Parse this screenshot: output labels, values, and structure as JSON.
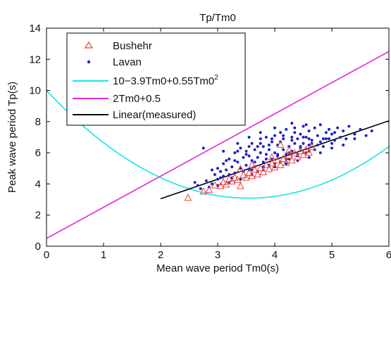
{
  "chart_data": {
    "type": "scatter",
    "title": "Tp/Tm0",
    "xlabel": "Mean wave period Tm0(s)",
    "ylabel": "Peak wave period Tp(s)",
    "xlim": [
      0,
      6
    ],
    "ylim": [
      0,
      14
    ],
    "xticks": [
      "0",
      "1",
      "2",
      "3",
      "4",
      "5",
      "6"
    ],
    "yticks": [
      "0",
      "2",
      "4",
      "6",
      "8",
      "10",
      "12",
      "14"
    ],
    "grid": false,
    "legend_position": "top-left",
    "series": [
      {
        "name": "Bushehr",
        "kind": "scatter",
        "marker": "triangle-open",
        "color": "#e8413a",
        "points": [
          [
            2.48,
            3.1
          ],
          [
            2.75,
            3.5
          ],
          [
            2.85,
            3.6
          ],
          [
            2.95,
            3.9
          ],
          [
            3.05,
            3.85
          ],
          [
            3.1,
            4.1
          ],
          [
            3.15,
            3.95
          ],
          [
            3.2,
            4.3
          ],
          [
            3.25,
            4.15
          ],
          [
            3.3,
            4.4
          ],
          [
            3.35,
            4.25
          ],
          [
            3.4,
            3.85
          ],
          [
            3.45,
            4.55
          ],
          [
            3.5,
            4.4
          ],
          [
            3.55,
            4.7
          ],
          [
            3.6,
            4.5
          ],
          [
            3.65,
            4.9
          ],
          [
            3.7,
            4.6
          ],
          [
            3.75,
            5.0
          ],
          [
            3.8,
            4.75
          ],
          [
            3.85,
            5.2
          ],
          [
            3.9,
            4.95
          ],
          [
            3.95,
            5.3
          ],
          [
            4.0,
            5.05
          ],
          [
            4.05,
            5.5
          ],
          [
            4.1,
            5.2
          ],
          [
            4.15,
            5.6
          ],
          [
            4.2,
            5.35
          ],
          [
            4.25,
            5.8
          ],
          [
            4.3,
            5.5
          ],
          [
            4.35,
            5.95
          ],
          [
            4.4,
            5.7
          ],
          [
            4.45,
            6.1
          ],
          [
            4.5,
            5.85
          ],
          [
            4.55,
            6.2
          ],
          [
            4.6,
            6.0
          ],
          [
            4.65,
            6.35
          ],
          [
            4.1,
            6.5
          ],
          [
            3.95,
            5.7
          ],
          [
            4.25,
            6.15
          ],
          [
            3.6,
            5.2
          ],
          [
            3.4,
            4.95
          ]
        ]
      },
      {
        "name": "Lavan",
        "kind": "scatter",
        "marker": "dot",
        "color": "#1b22c9",
        "points": [
          [
            2.7,
            3.7
          ],
          [
            2.8,
            4.2
          ],
          [
            2.9,
            4.0
          ],
          [
            2.95,
            4.6
          ],
          [
            3.0,
            4.3
          ],
          [
            3.0,
            5.0
          ],
          [
            3.05,
            4.8
          ],
          [
            3.1,
            4.5
          ],
          [
            3.1,
            5.3
          ],
          [
            3.15,
            4.9
          ],
          [
            3.2,
            5.6
          ],
          [
            3.2,
            4.6
          ],
          [
            3.25,
            5.1
          ],
          [
            3.3,
            6.0
          ],
          [
            3.3,
            4.7
          ],
          [
            3.35,
            5.4
          ],
          [
            3.4,
            5.0
          ],
          [
            3.4,
            6.3
          ],
          [
            3.45,
            5.7
          ],
          [
            3.5,
            5.2
          ],
          [
            3.5,
            6.1
          ],
          [
            3.55,
            4.9
          ],
          [
            3.55,
            5.8
          ],
          [
            3.6,
            5.5
          ],
          [
            3.6,
            6.6
          ],
          [
            3.65,
            5.1
          ],
          [
            3.65,
            6.2
          ],
          [
            3.7,
            5.7
          ],
          [
            3.7,
            4.8
          ],
          [
            3.75,
            6.0
          ],
          [
            3.75,
            6.9
          ],
          [
            3.8,
            5.4
          ],
          [
            3.8,
            6.4
          ],
          [
            3.85,
            5.9
          ],
          [
            3.85,
            7.0
          ],
          [
            3.9,
            5.2
          ],
          [
            3.9,
            6.2
          ],
          [
            3.95,
            6.7
          ],
          [
            3.95,
            5.6
          ],
          [
            4.0,
            6.0
          ],
          [
            4.0,
            7.1
          ],
          [
            4.05,
            5.8
          ],
          [
            4.05,
            6.5
          ],
          [
            4.1,
            7.3
          ],
          [
            4.1,
            5.4
          ],
          [
            4.15,
            6.2
          ],
          [
            4.15,
            6.9
          ],
          [
            4.2,
            5.9
          ],
          [
            4.2,
            7.5
          ],
          [
            4.25,
            6.4
          ],
          [
            4.25,
            5.6
          ],
          [
            4.3,
            7.0
          ],
          [
            4.3,
            6.1
          ],
          [
            4.35,
            6.6
          ],
          [
            4.35,
            7.6
          ],
          [
            4.4,
            5.8
          ],
          [
            4.4,
            6.9
          ],
          [
            4.45,
            6.3
          ],
          [
            4.45,
            7.2
          ],
          [
            4.5,
            6.6
          ],
          [
            4.5,
            7.7
          ],
          [
            4.55,
            6.0
          ],
          [
            4.55,
            7.0
          ],
          [
            4.6,
            6.5
          ],
          [
            4.6,
            7.4
          ],
          [
            4.65,
            6.8
          ],
          [
            4.7,
            7.6
          ],
          [
            4.7,
            6.2
          ],
          [
            4.75,
            7.1
          ],
          [
            4.8,
            6.7
          ],
          [
            4.8,
            7.8
          ],
          [
            4.85,
            6.4
          ],
          [
            4.9,
            7.3
          ],
          [
            4.9,
            6.9
          ],
          [
            4.95,
            7.5
          ],
          [
            5.0,
            6.6
          ],
          [
            5.0,
            7.2
          ],
          [
            5.05,
            6.8
          ],
          [
            5.1,
            7.6
          ],
          [
            5.15,
            7.0
          ],
          [
            5.2,
            7.4
          ],
          [
            5.25,
            6.9
          ],
          [
            5.3,
            7.7
          ],
          [
            5.4,
            7.2
          ],
          [
            5.5,
            7.5
          ],
          [
            5.6,
            7.1
          ],
          [
            5.7,
            7.4
          ],
          [
            3.3,
            5.5
          ],
          [
            3.5,
            5.9
          ],
          [
            3.7,
            6.4
          ],
          [
            3.9,
            6.5
          ],
          [
            4.1,
            6.7
          ],
          [
            4.3,
            6.8
          ],
          [
            4.5,
            7.0
          ],
          [
            3.6,
            4.9
          ],
          [
            3.8,
            5.1
          ],
          [
            4.0,
            5.3
          ],
          [
            4.2,
            5.6
          ],
          [
            4.4,
            5.9
          ],
          [
            4.6,
            6.1
          ],
          [
            2.85,
            3.8
          ],
          [
            3.05,
            4.4
          ],
          [
            3.25,
            4.4
          ],
          [
            3.45,
            4.8
          ],
          [
            3.65,
            5.4
          ],
          [
            3.85,
            5.6
          ],
          [
            4.05,
            5.9
          ],
          [
            4.25,
            6.0
          ],
          [
            4.45,
            6.4
          ],
          [
            4.65,
            6.6
          ],
          [
            4.85,
            6.9
          ],
          [
            5.05,
            7.3
          ],
          [
            2.75,
            6.3
          ],
          [
            3.1,
            6.1
          ],
          [
            3.35,
            6.6
          ],
          [
            3.55,
            7.0
          ],
          [
            3.75,
            7.3
          ],
          [
            4.0,
            7.6
          ],
          [
            4.3,
            7.9
          ],
          [
            4.55,
            7.8
          ],
          [
            3.0,
            3.9
          ],
          [
            3.2,
            4.1
          ],
          [
            3.4,
            4.3
          ],
          [
            3.6,
            4.6
          ],
          [
            3.8,
            4.9
          ],
          [
            4.0,
            5.1
          ],
          [
            4.2,
            5.3
          ],
          [
            4.4,
            5.5
          ],
          [
            4.6,
            5.7
          ],
          [
            4.8,
            6.0
          ],
          [
            5.0,
            6.3
          ],
          [
            5.2,
            6.5
          ],
          [
            5.4,
            6.9
          ],
          [
            2.6,
            4.1
          ],
          [
            2.65,
            3.9
          ],
          [
            2.9,
            4.9
          ],
          [
            3.15,
            5.5
          ],
          [
            3.35,
            6.1
          ],
          [
            3.55,
            6.4
          ],
          [
            3.75,
            6.6
          ],
          [
            3.95,
            6.9
          ],
          [
            4.15,
            7.1
          ],
          [
            4.35,
            7.3
          ],
          [
            4.6,
            6.9
          ],
          [
            4.75,
            6.5
          ],
          [
            4.95,
            6.9
          ]
        ]
      },
      {
        "name": "10−3.9Tm0+0.55Tm0",
        "name_superscript": "2",
        "kind": "curve",
        "formula": "10-3.9x+0.55x^2",
        "color": "#19e5e5",
        "x_range": [
          0,
          6
        ]
      },
      {
        "name": "2Tm0+0.5",
        "kind": "line",
        "formula": "2x+0.5",
        "color": "#e026d8",
        "x_range": [
          0,
          6
        ]
      },
      {
        "name": "Linear(measured)",
        "kind": "line",
        "formula": "1.25x+0.55",
        "color": "#000000",
        "x_range": [
          2,
          6
        ]
      }
    ]
  }
}
